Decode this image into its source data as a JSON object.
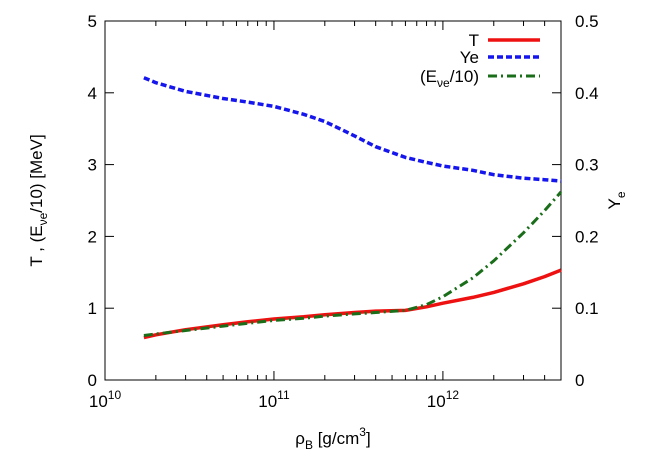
{
  "chart_data": {
    "type": "line",
    "xscale": "log",
    "xlim": [
      10000000000.0,
      5000000000000.0
    ],
    "ylim_left": [
      0,
      5
    ],
    "ylim_right": [
      0,
      0.5
    ],
    "grid": false,
    "legend_position": "top-right",
    "x_ticks": [
      {
        "value": 10000000000.0,
        "base": "10",
        "exp": "10"
      },
      {
        "value": 100000000000.0,
        "base": "10",
        "exp": "11"
      },
      {
        "value": 1000000000000.0,
        "base": "10",
        "exp": "12"
      }
    ],
    "y_left_ticks": [
      "0",
      "1",
      "2",
      "3",
      "4",
      "5"
    ],
    "y_right_ticks": [
      "0",
      "0.1",
      "0.2",
      "0.3",
      "0.4",
      "0.5"
    ],
    "xlabel": {
      "main": "ρ",
      "sub": "B",
      "rest": "  [g/cm",
      "sup": "3",
      "end": "]"
    },
    "ylabel_left": {
      "pre": "T , (E",
      "sub": "νe",
      "post": "/10)  [MeV]"
    },
    "ylabel_right": {
      "main": "Y",
      "sub": "e"
    },
    "series": [
      {
        "name": "T",
        "axis": "left",
        "color": "#ee1111",
        "dash": "solid",
        "points": [
          [
            17000000000.0,
            0.59
          ],
          [
            20000000000.0,
            0.63
          ],
          [
            30000000000.0,
            0.7
          ],
          [
            50000000000.0,
            0.77
          ],
          [
            70000000000.0,
            0.81
          ],
          [
            100000000000.0,
            0.85
          ],
          [
            150000000000.0,
            0.88
          ],
          [
            200000000000.0,
            0.91
          ],
          [
            300000000000.0,
            0.94
          ],
          [
            400000000000.0,
            0.96
          ],
          [
            600000000000.0,
            0.97
          ],
          [
            800000000000.0,
            1.02
          ],
          [
            1000000000000.0,
            1.07
          ],
          [
            1500000000000.0,
            1.15
          ],
          [
            2000000000000.0,
            1.22
          ],
          [
            3000000000000.0,
            1.34
          ],
          [
            4000000000000.0,
            1.44
          ],
          [
            5000000000000.0,
            1.53
          ]
        ]
      },
      {
        "name": "Ye",
        "axis": "right",
        "color": "#1515ee",
        "dash": "dashed",
        "points": [
          [
            17000000000.0,
            0.421
          ],
          [
            20000000000.0,
            0.414
          ],
          [
            30000000000.0,
            0.402
          ],
          [
            50000000000.0,
            0.392
          ],
          [
            70000000000.0,
            0.387
          ],
          [
            100000000000.0,
            0.381
          ],
          [
            150000000000.0,
            0.37
          ],
          [
            200000000000.0,
            0.36
          ],
          [
            300000000000.0,
            0.34
          ],
          [
            400000000000.0,
            0.325
          ],
          [
            600000000000.0,
            0.31
          ],
          [
            800000000000.0,
            0.303
          ],
          [
            1000000000000.0,
            0.298
          ],
          [
            1500000000000.0,
            0.292
          ],
          [
            2000000000000.0,
            0.286
          ],
          [
            3000000000000.0,
            0.281
          ],
          [
            4000000000000.0,
            0.279
          ],
          [
            5000000000000.0,
            0.277
          ]
        ]
      },
      {
        "name": "(E",
        "name_sub": "νe",
        "name_post": "/10)",
        "axis": "left",
        "color": "#1a6e1a",
        "dash": "dashdot",
        "points": [
          [
            17000000000.0,
            0.62
          ],
          [
            20000000000.0,
            0.64
          ],
          [
            30000000000.0,
            0.69
          ],
          [
            50000000000.0,
            0.75
          ],
          [
            70000000000.0,
            0.79
          ],
          [
            100000000000.0,
            0.83
          ],
          [
            150000000000.0,
            0.86
          ],
          [
            200000000000.0,
            0.89
          ],
          [
            300000000000.0,
            0.92
          ],
          [
            400000000000.0,
            0.94
          ],
          [
            600000000000.0,
            0.97
          ],
          [
            800000000000.0,
            1.05
          ],
          [
            1000000000000.0,
            1.16
          ],
          [
            1500000000000.0,
            1.42
          ],
          [
            2000000000000.0,
            1.66
          ],
          [
            3000000000000.0,
            2.05
          ],
          [
            4000000000000.0,
            2.36
          ],
          [
            5000000000000.0,
            2.62
          ]
        ]
      }
    ]
  }
}
